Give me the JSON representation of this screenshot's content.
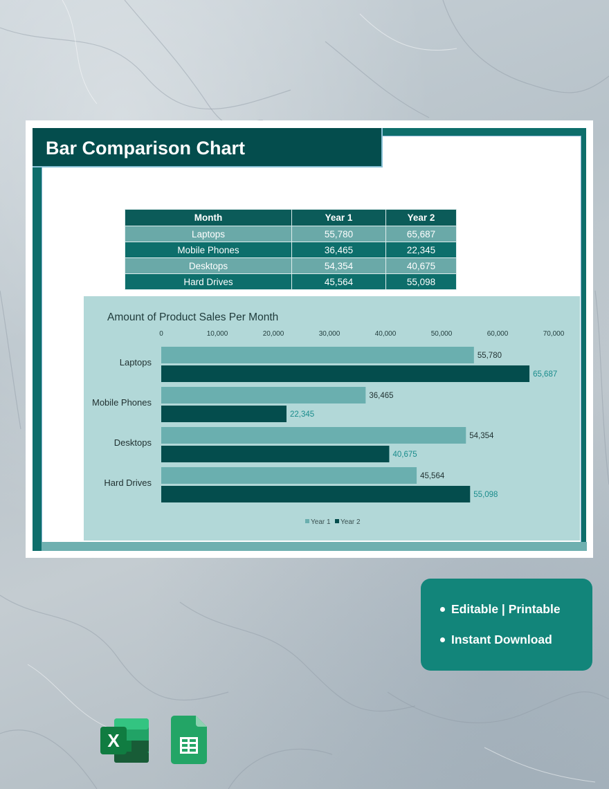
{
  "header": {
    "title": "Bar Comparison Chart"
  },
  "table": {
    "headers": [
      "Month",
      "Year 1",
      "Year 2"
    ],
    "rows": [
      {
        "label": "Laptops",
        "y1": "55,780",
        "y2": "65,687"
      },
      {
        "label": "Mobile Phones",
        "y1": "36,465",
        "y2": "22,345"
      },
      {
        "label": "Desktops",
        "y1": "54,354",
        "y2": "40,675"
      },
      {
        "label": "Hard Drives",
        "y1": "45,564",
        "y2": "55,098"
      }
    ]
  },
  "chart_data": {
    "type": "bar",
    "orientation": "horizontal",
    "title": "Amount of Product Sales Per Month",
    "categories": [
      "Laptops",
      "Mobile Phones",
      "Desktops",
      "Hard Drives"
    ],
    "series": [
      {
        "name": "Year 1",
        "values": [
          55780,
          36465,
          54354,
          45564
        ],
        "color": "#6aafaf"
      },
      {
        "name": "Year 2",
        "values": [
          65687,
          22345,
          40675,
          55098
        ],
        "color": "#044d4d"
      }
    ],
    "xlim": [
      0,
      70000
    ],
    "xticks": [
      0,
      10000,
      20000,
      30000,
      40000,
      50000,
      60000,
      70000
    ],
    "xtick_labels": [
      "0",
      "10,000",
      "20,000",
      "30,000",
      "40,000",
      "50,000",
      "60,000",
      "70,000"
    ],
    "data_labels": [
      [
        "55,780",
        "36,465",
        "54,354",
        "45,564"
      ],
      [
        "65,687",
        "22,345",
        "40,675",
        "55,098"
      ]
    ],
    "data_label_colors": [
      "#1f2f2f",
      "#1a8c8c"
    ],
    "legend_position": "bottom",
    "grid": false
  },
  "features": {
    "items": [
      "Editable | Printable",
      "Instant Download"
    ]
  },
  "icons": {
    "excel": "excel-icon",
    "sheets": "google-sheets-icon",
    "excel_letter": "X"
  },
  "colors": {
    "teal_dark": "#044d4d",
    "teal": "#0e6e6b",
    "teal_light": "#6aafaf",
    "chart_bg": "#b2d8d8",
    "badge": "#12857a"
  }
}
